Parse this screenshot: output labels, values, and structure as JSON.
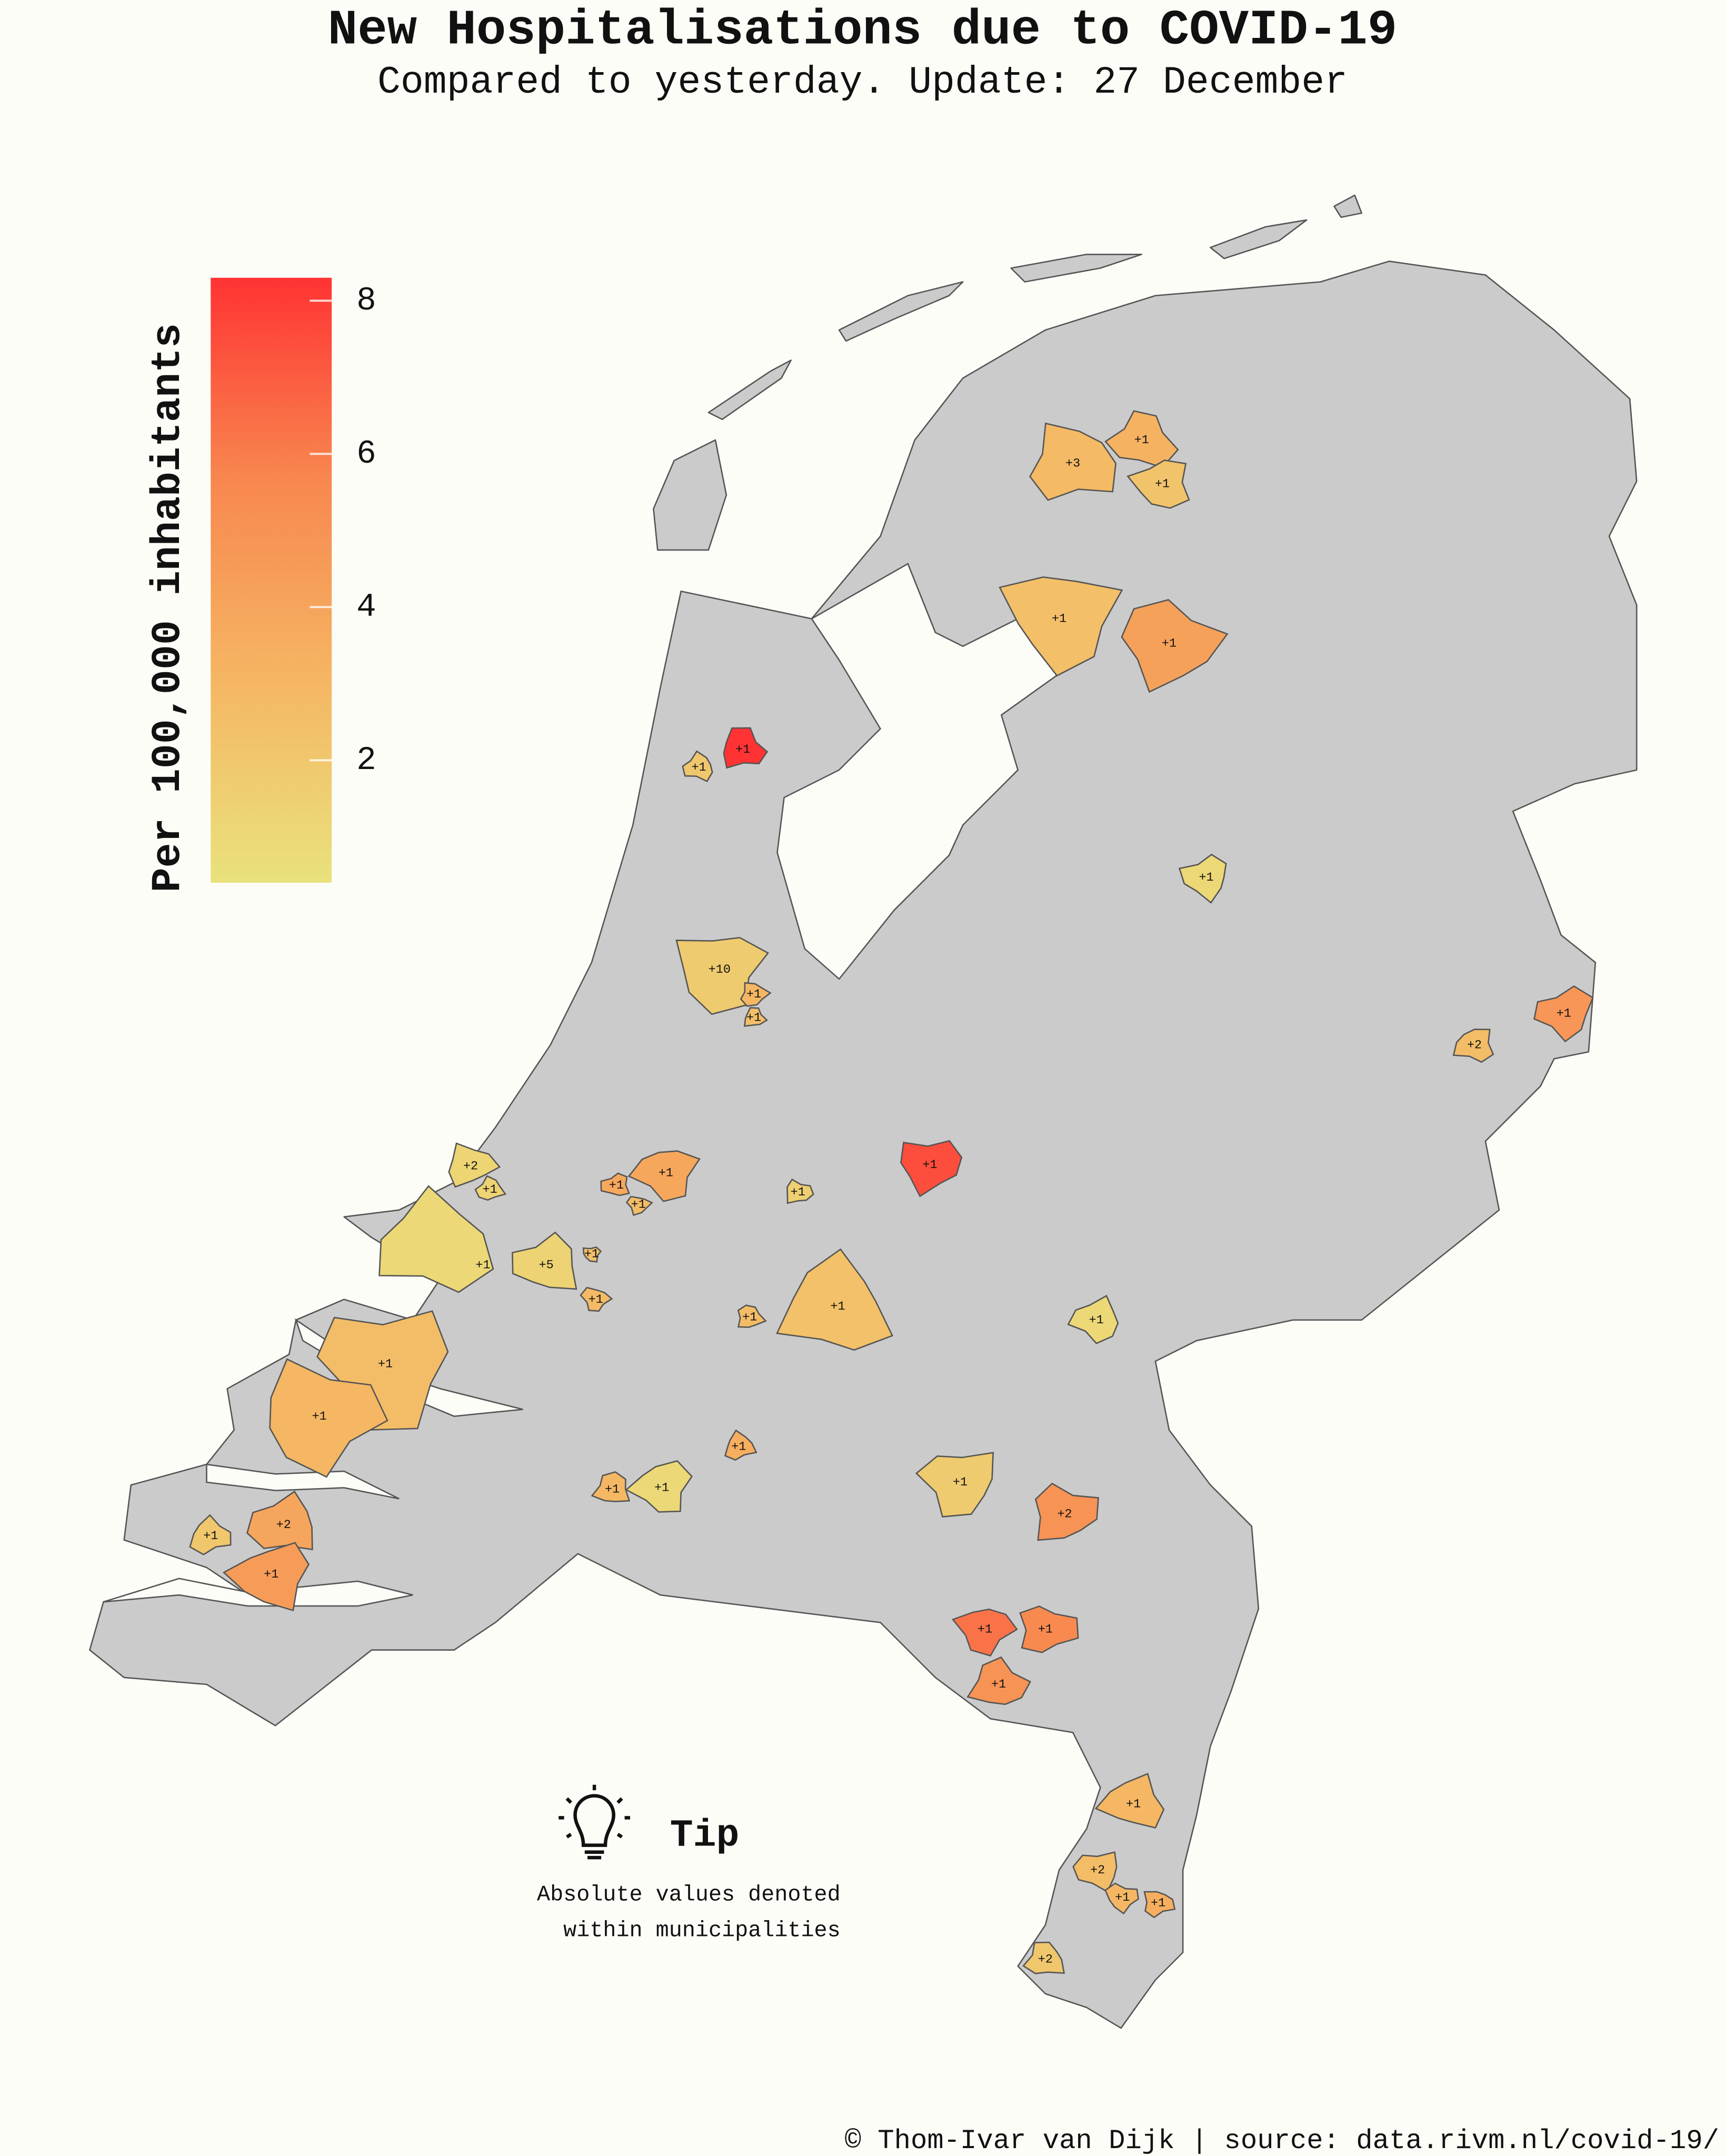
{
  "chart_data": {
    "type": "choropleth",
    "title": "New Hospitalisations due to COVID-19",
    "subtitle": "Compared to yesterday. Update: 27 December",
    "colorbar_label": "Per 100,000 inhabitants",
    "clim": [
      0.4,
      8.3
    ],
    "cticks": [
      2,
      4,
      6,
      8
    ],
    "colors": [
      "#e9e27c",
      "#f5b663",
      "#f8874f",
      "#ff3333"
    ],
    "regions": [
      {
        "label": "+3",
        "value": 2.8
      },
      {
        "label": "+1",
        "value": 3.2
      },
      {
        "label": "+1",
        "value": 2.2
      },
      {
        "label": "+1",
        "value": 2.5
      },
      {
        "label": "+1",
        "value": 4.2
      },
      {
        "label": "+1",
        "value": 8.3
      },
      {
        "label": "+1",
        "value": 2.0
      },
      {
        "label": "+1",
        "value": 1.0
      },
      {
        "label": "+10",
        "value": 1.8
      },
      {
        "label": "+1",
        "value": 3.0
      },
      {
        "label": "+1",
        "value": 2.5
      },
      {
        "label": "+2",
        "value": 2.6
      },
      {
        "label": "+1",
        "value": 4.8
      },
      {
        "label": "+1",
        "value": 7.5
      },
      {
        "label": "+2",
        "value": 1.2
      },
      {
        "label": "+1",
        "value": 1.3
      },
      {
        "label": "+1",
        "value": 3.8
      },
      {
        "label": "+1",
        "value": 3.9
      },
      {
        "label": "+1",
        "value": 2.6
      },
      {
        "label": "+1",
        "value": 1.5
      },
      {
        "label": "+1",
        "value": 1.0
      },
      {
        "label": "+5",
        "value": 1.3
      },
      {
        "label": "+1",
        "value": 2.5
      },
      {
        "label": "+1",
        "value": 2.8
      },
      {
        "label": "+1",
        "value": 2.7
      },
      {
        "label": "+1",
        "value": 2.4
      },
      {
        "label": "+1",
        "value": 1.0
      },
      {
        "label": "+1",
        "value": 2.6
      },
      {
        "label": "+1",
        "value": 3.0
      },
      {
        "label": "+1",
        "value": 3.5
      },
      {
        "label": "+1",
        "value": 2.9
      },
      {
        "label": "+1",
        "value": 1.0
      },
      {
        "label": "+1",
        "value": 1.8
      },
      {
        "label": "+2",
        "value": 5.0
      },
      {
        "label": "+1",
        "value": 2.0
      },
      {
        "label": "+2",
        "value": 4.0
      },
      {
        "label": "+1",
        "value": 4.5
      },
      {
        "label": "+1",
        "value": 6.3
      },
      {
        "label": "+1",
        "value": 5.5
      },
      {
        "label": "+1",
        "value": 5.0
      },
      {
        "label": "+1",
        "value": 3.0
      },
      {
        "label": "+2",
        "value": 2.6
      },
      {
        "label": "+1",
        "value": 3.0
      },
      {
        "label": "+1",
        "value": 3.5
      },
      {
        "label": "+2",
        "value": 2.0
      }
    ],
    "tip": {
      "title": "Tip",
      "lines": [
        "Absolute values denoted",
        "within municipalities"
      ]
    },
    "source": "© Thom-Ivar van Dijk | source: data.rivm.nl/covid-19/"
  }
}
